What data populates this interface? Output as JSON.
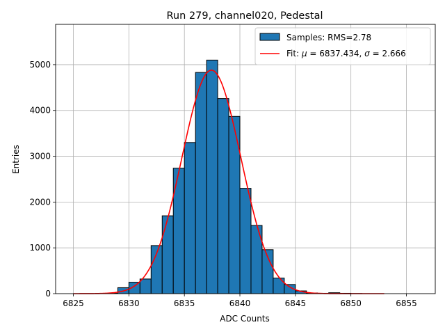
{
  "chart_data": {
    "type": "bar",
    "title": "Run 279, channel020, Pedestal",
    "xlabel": "ADC Counts",
    "ylabel": "Entries",
    "xlim": [
      6823.4,
      6857.6
    ],
    "ylim": [
      0,
      5880
    ],
    "xticks": [
      6825,
      6830,
      6835,
      6840,
      6845,
      6850,
      6855
    ],
    "yticks": [
      0,
      1000,
      2000,
      3000,
      4000,
      5000
    ],
    "grid": true,
    "legend_position": "top-right",
    "histogram": {
      "name": "Samples: RMS=2.78",
      "bin_width": 1,
      "bin_left_edges": [
        6825,
        6826,
        6827,
        6828,
        6829,
        6830,
        6831,
        6832,
        6833,
        6834,
        6835,
        6836,
        6837,
        6838,
        6839,
        6840,
        6841,
        6842,
        6843,
        6844,
        6845,
        6846,
        6847,
        6848,
        6849,
        6850,
        6851,
        6852
      ],
      "values": [
        0,
        0,
        3,
        8,
        130,
        250,
        320,
        1050,
        1700,
        2740,
        3300,
        4830,
        5100,
        4260,
        3870,
        2300,
        1490,
        960,
        340,
        200,
        60,
        15,
        8,
        20,
        8,
        3,
        0,
        0
      ],
      "color": "#1f77b4",
      "edgecolor": "#000000"
    },
    "fit": {
      "name": "Fit: μ = 6837.434, σ = 2.666",
      "label_prefix": "Fit: ",
      "mu_symbol": "μ",
      "mu_text": " = 6837.434, ",
      "sigma_symbol": "σ",
      "sigma_text": " = 2.666",
      "mu": 6837.434,
      "sigma": 2.666,
      "amplitude": 4880,
      "x_range": [
        6825,
        6853
      ],
      "color": "#ff0000"
    }
  }
}
